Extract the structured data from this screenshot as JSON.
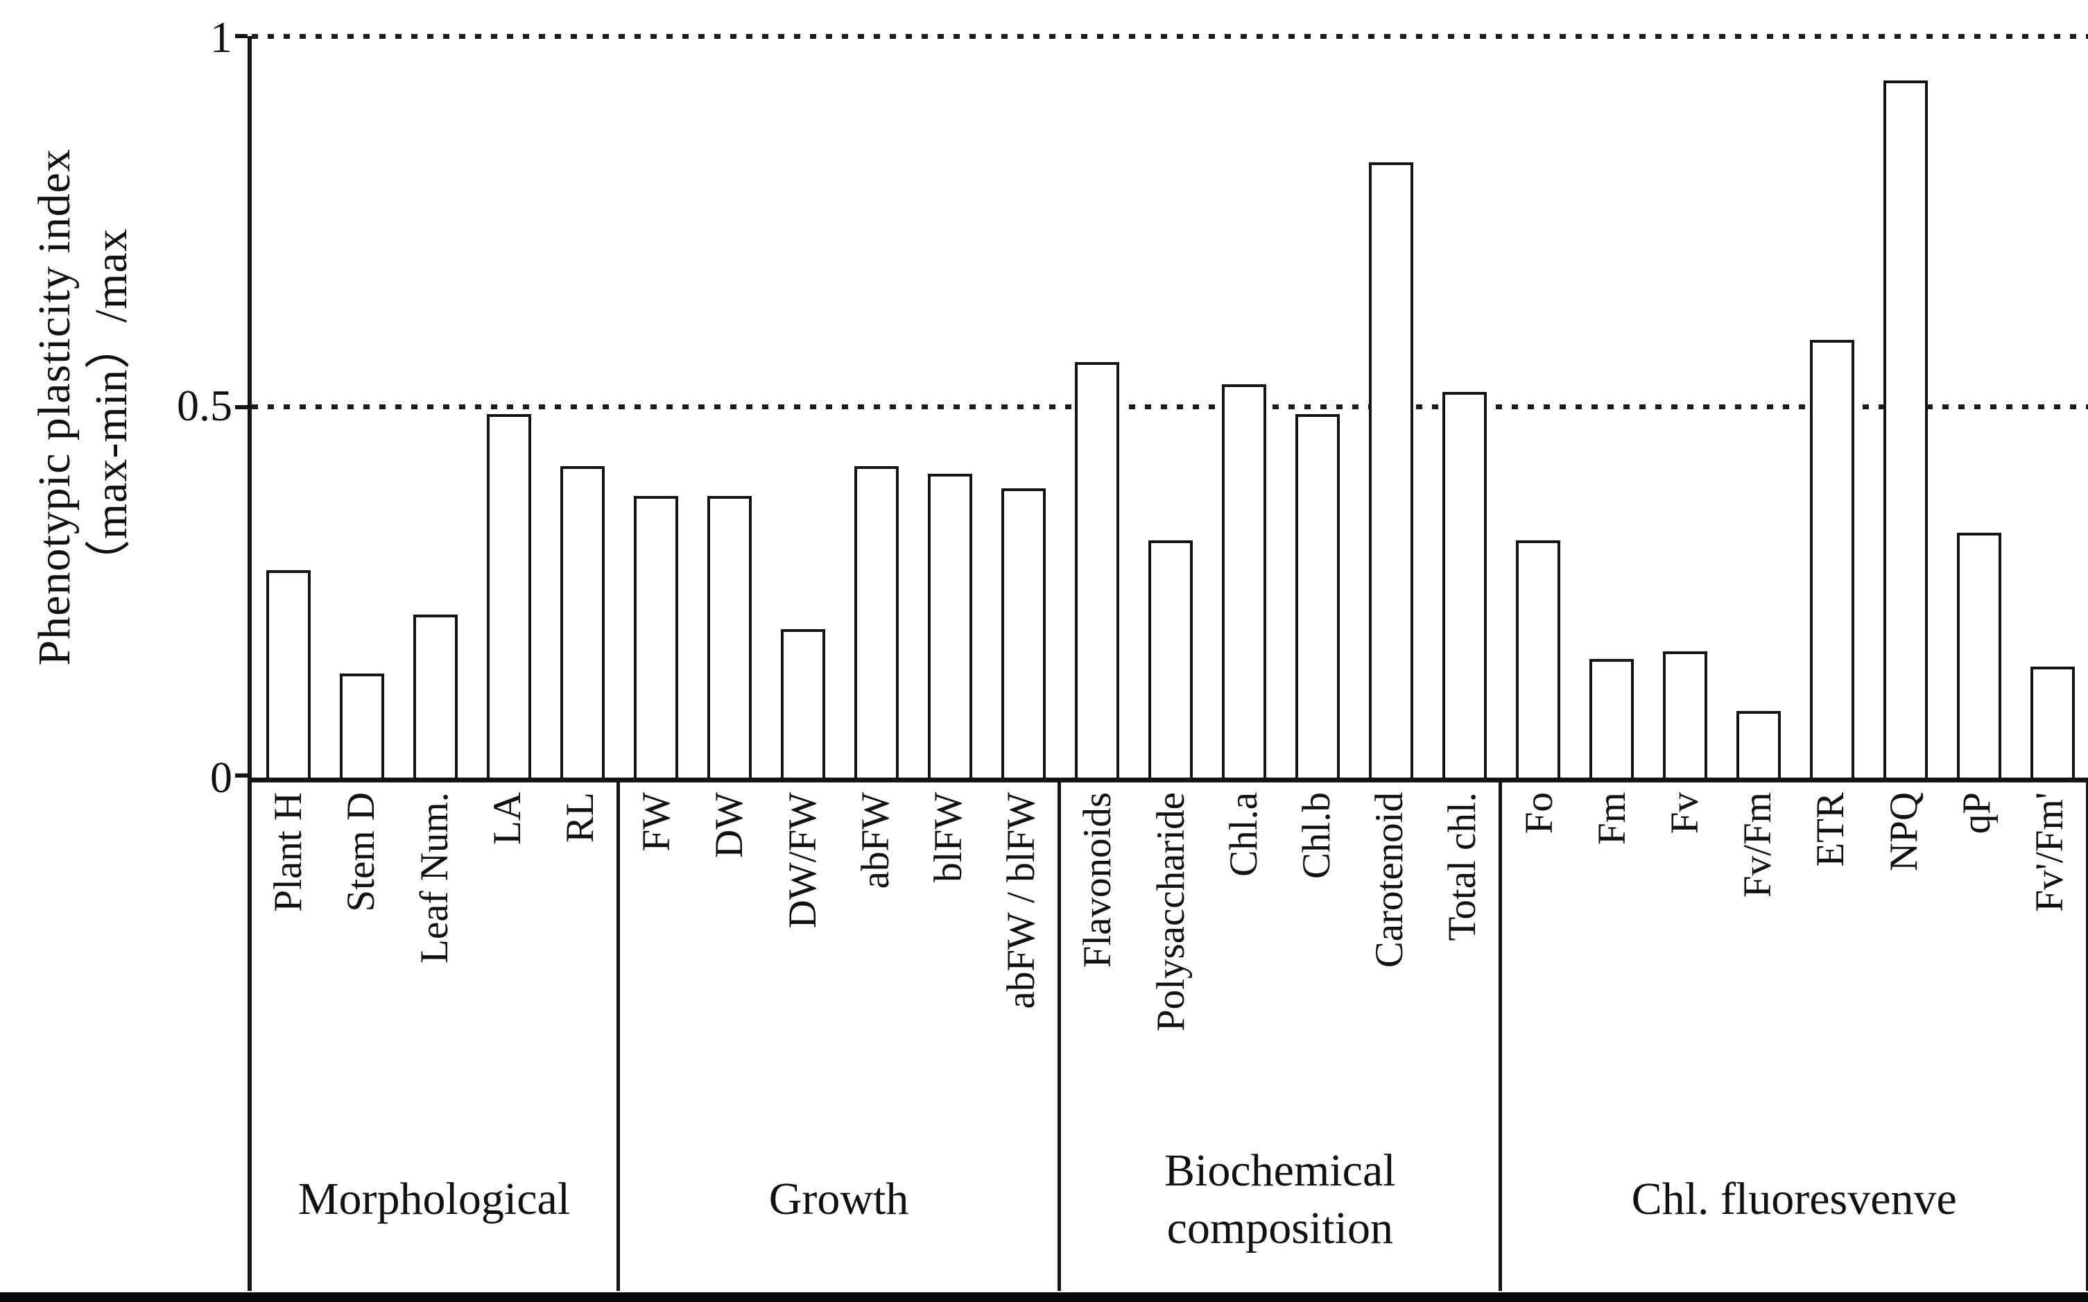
{
  "chart_data": {
    "type": "bar",
    "title": "",
    "ylabel_line1": "Phenotypic plasticity index",
    "ylabel_line2": "（max-min）/max",
    "xlabel": "",
    "ylim": [
      0,
      1
    ],
    "yticks": [
      {
        "value": 1,
        "label": "1"
      },
      {
        "value": 0.5,
        "label": "0.5"
      },
      {
        "value": 0,
        "label": "0"
      }
    ],
    "gridlines": {
      "style": "dotted",
      "at": [
        1,
        0.5
      ]
    },
    "legend": "none",
    "bar_fill": "#ffffff",
    "bar_border": "#131313",
    "groups": [
      {
        "label": "Morphological",
        "bars": [
          {
            "label": "Plant H",
            "value": 0.28
          },
          {
            "label": "Stem D",
            "value": 0.14
          },
          {
            "label": "Leaf Num.",
            "value": 0.22
          },
          {
            "label": "LA",
            "value": 0.49
          },
          {
            "label": "RL",
            "value": 0.42
          }
        ]
      },
      {
        "label": "Growth",
        "bars": [
          {
            "label": "FW",
            "value": 0.38
          },
          {
            "label": "DW",
            "value": 0.38
          },
          {
            "label": "DW/FW",
            "value": 0.2
          },
          {
            "label": "abFW",
            "value": 0.42
          },
          {
            "label": "blFW",
            "value": 0.41
          },
          {
            "label": "abFW / blFW",
            "value": 0.39
          }
        ]
      },
      {
        "label": "Biochemical composition",
        "bars": [
          {
            "label": "Flavonoids",
            "value": 0.56
          },
          {
            "label": "Polysaccharide",
            "value": 0.32
          },
          {
            "label": "Chl.a",
            "value": 0.53
          },
          {
            "label": "Chl.b",
            "value": 0.49
          },
          {
            "label": "Carotenoid",
            "value": 0.83
          },
          {
            "label": "Total chl.",
            "value": 0.52
          }
        ]
      },
      {
        "label": "Chl. fluoresvenve",
        "bars": [
          {
            "label": "Fo",
            "value": 0.32
          },
          {
            "label": "Fm",
            "value": 0.16
          },
          {
            "label": "Fv",
            "value": 0.17
          },
          {
            "label": "Fv/Fm",
            "value": 0.09
          },
          {
            "label": "ETR",
            "value": 0.59
          },
          {
            "label": "NPQ",
            "value": 0.94
          },
          {
            "label": "qP",
            "value": 0.33
          },
          {
            "label": "Fv'/Fm'",
            "value": 0.15
          }
        ]
      }
    ]
  }
}
